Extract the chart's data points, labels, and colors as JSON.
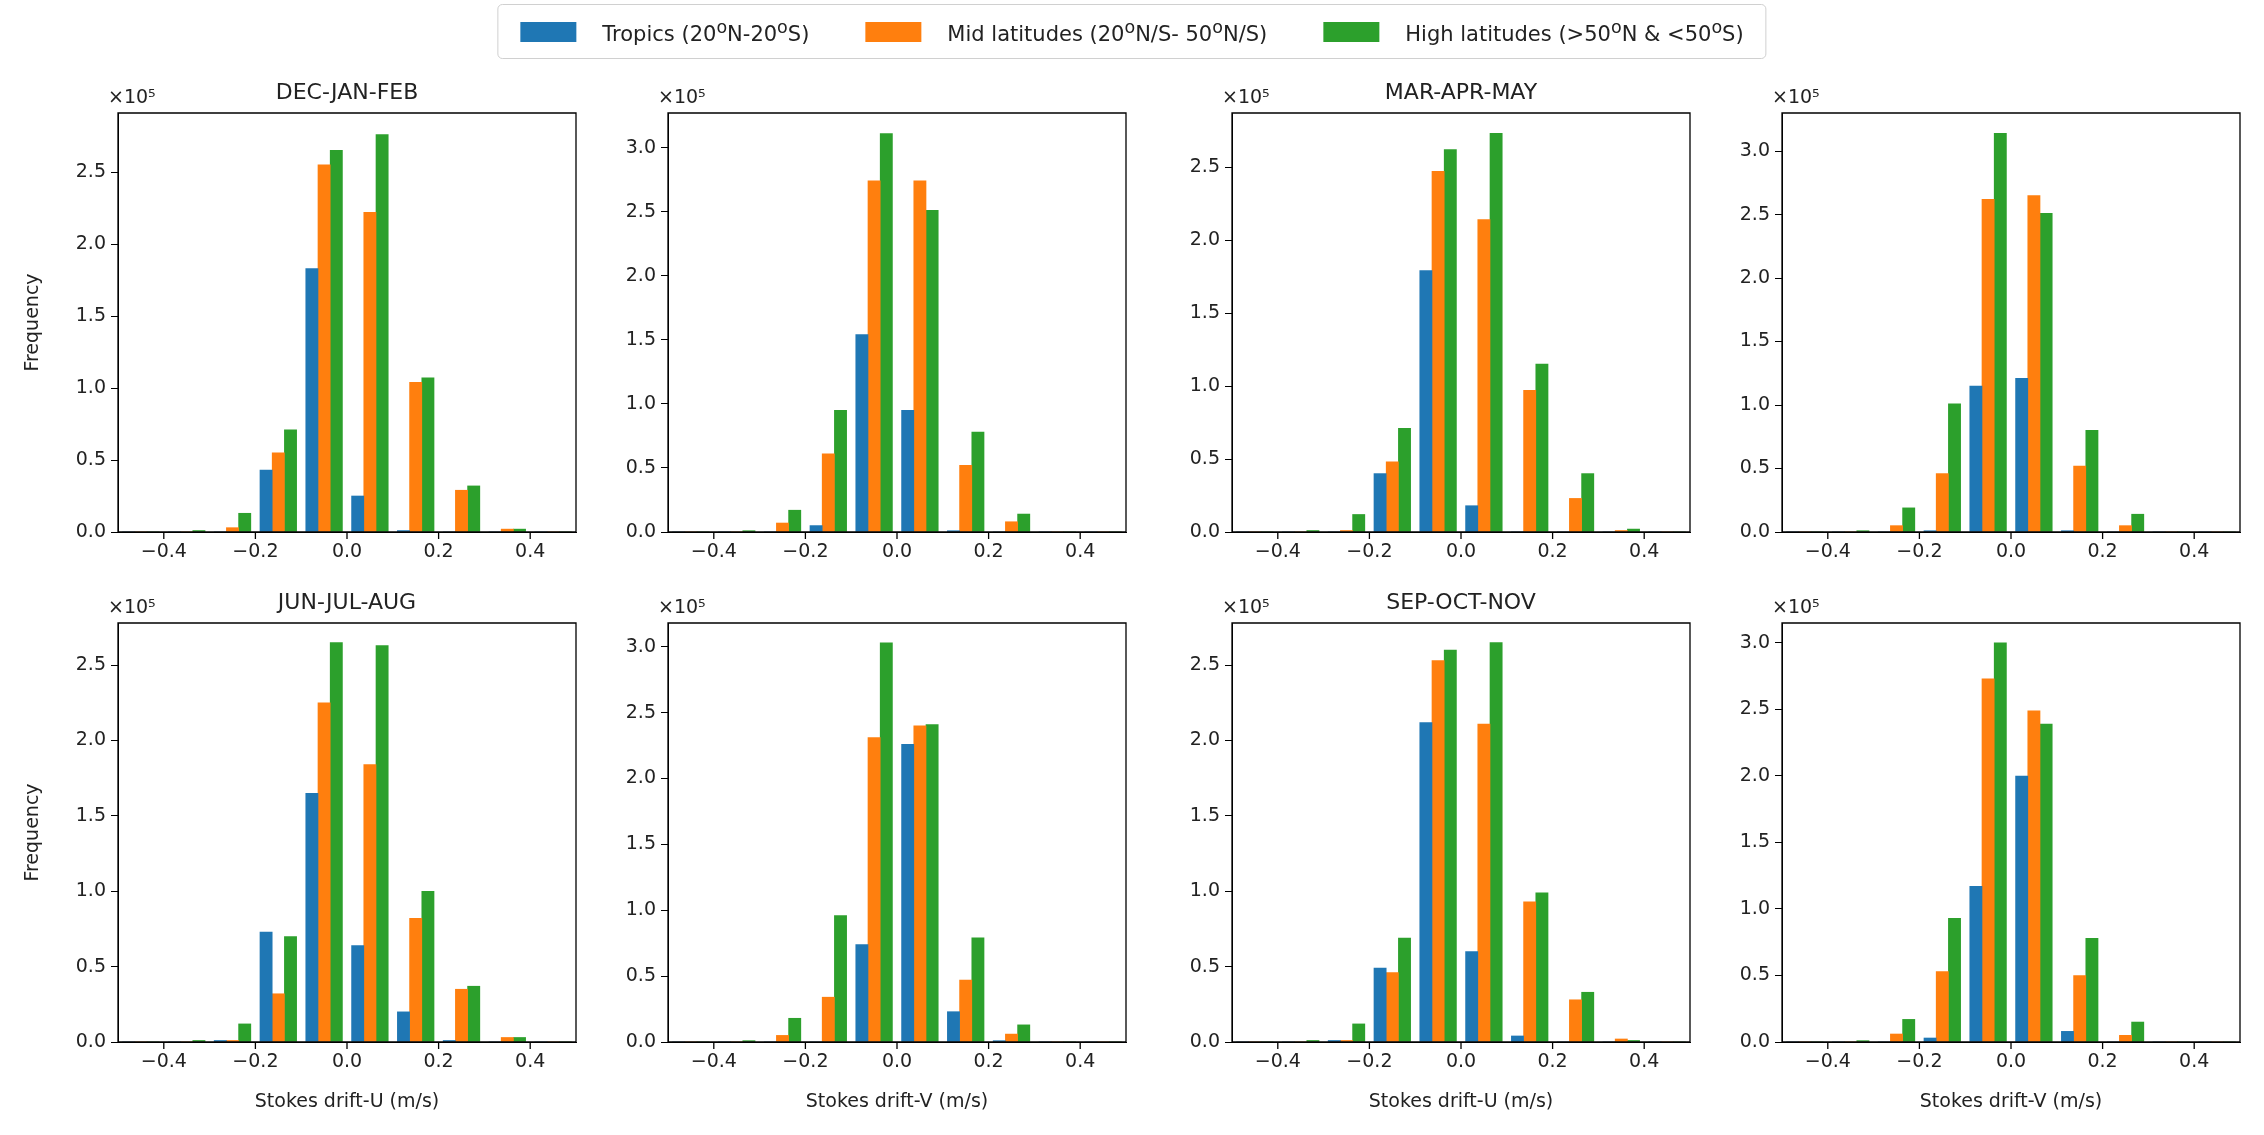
{
  "chart_data": [
    {
      "type": "histogram",
      "title": "DEC-JAN-FEB",
      "ylabel": "Frequency",
      "legend": "top",
      "annotations": [
        "×10⁵"
      ],
      "bins": [
        -0.5,
        -0.4,
        -0.3,
        -0.2,
        -0.1,
        0,
        0.1,
        0.2,
        0.3,
        0.4,
        0.5
      ],
      "series": [
        {
          "name": "Tropics (20$^{o}$N-20$^{o}$S)",
          "color": "#1f77b4",
          "values": [
            0,
            0,
            0,
            0.43,
            1.83,
            0.25,
            0.01,
            0,
            0,
            0
          ]
        },
        {
          "name": "Mid latitudes (20$^{o}$N/S- 50$^{o}$N/S)",
          "color": "#ff7f0e",
          "values": [
            0,
            0,
            0.03,
            0.55,
            2.55,
            2.22,
            1.04,
            0.29,
            0.02,
            0
          ]
        },
        {
          "name": "High latitudes (>50$^{o}$N & <50$^{o}$S)",
          "color": "#2ca02c",
          "values": [
            0,
            0.01,
            0.13,
            0.71,
            2.65,
            2.76,
            1.07,
            0.32,
            0.02,
            0
          ]
        }
      ],
      "xlim": [
        -0.5,
        0.5
      ],
      "xticks": [
        {
          "value": -0.4,
          "label": "−0.4"
        },
        {
          "value": -0.2,
          "label": "−0.2"
        },
        {
          "value": 0,
          "label": "0.0"
        },
        {
          "value": 0.2,
          "label": "0.2"
        },
        {
          "value": 0.4,
          "label": "0.4"
        }
      ],
      "ylim": [
        0,
        2.91
      ],
      "yticks": [
        {
          "value": 0,
          "label": "0.0"
        },
        0.5,
        {
          "value": 1,
          "label": "1.0"
        },
        1.5,
        {
          "value": 2,
          "label": "2.0"
        },
        2.5
      ]
    },
    {
      "type": "histogram",
      "annotations": [
        "×10⁵"
      ],
      "bins": [
        -0.5,
        -0.4,
        -0.3,
        -0.2,
        -0.1,
        0,
        0.1,
        0.2,
        0.3,
        0.4,
        0.5
      ],
      "series": [
        {
          "color": "#1f77b4",
          "values": [
            0,
            0,
            0,
            0.05,
            1.54,
            0.95,
            0.01,
            0,
            0,
            0
          ]
        },
        {
          "color": "#ff7f0e",
          "values": [
            0,
            0,
            0.07,
            0.61,
            2.74,
            2.74,
            0.52,
            0.08,
            0,
            0
          ]
        },
        {
          "color": "#2ca02c",
          "values": [
            0,
            0.01,
            0.17,
            0.95,
            3.11,
            2.51,
            0.78,
            0.14,
            0,
            0
          ]
        }
      ],
      "xlim": [
        -0.5,
        0.5
      ],
      "xticks": [
        {
          "value": -0.4,
          "label": "−0.4"
        },
        {
          "value": -0.2,
          "label": "−0.2"
        },
        {
          "value": 0,
          "label": "0.0"
        },
        {
          "value": 0.2,
          "label": "0.2"
        },
        {
          "value": 0.4,
          "label": "0.4"
        }
      ],
      "ylim": [
        0,
        3.27
      ],
      "yticks": [
        {
          "value": 0,
          "label": "0.0"
        },
        0.5,
        {
          "value": 1,
          "label": "1.0"
        },
        1.5,
        {
          "value": 2,
          "label": "2.0"
        },
        2.5,
        {
          "value": 3,
          "label": "3.0"
        }
      ]
    },
    {
      "type": "histogram",
      "title": "MAR-APR-MAY",
      "annotations": [
        "×10⁵"
      ],
      "bins": [
        -0.5,
        -0.4,
        -0.3,
        -0.2,
        -0.1,
        0,
        0.1,
        0.2,
        0.3,
        0.4,
        0.5
      ],
      "series": [
        {
          "color": "#1f77b4",
          "values": [
            0,
            0,
            0,
            0.4,
            1.79,
            0.18,
            0,
            0,
            0,
            0
          ]
        },
        {
          "color": "#ff7f0e",
          "values": [
            0,
            0,
            0.01,
            0.48,
            2.47,
            2.14,
            0.97,
            0.23,
            0.01,
            0
          ]
        },
        {
          "color": "#2ca02c",
          "values": [
            0,
            0.01,
            0.12,
            0.71,
            2.62,
            2.73,
            1.15,
            0.4,
            0.02,
            0
          ]
        }
      ],
      "xlim": [
        -0.5,
        0.5
      ],
      "xticks": [
        {
          "value": -0.4,
          "label": "−0.4"
        },
        {
          "value": -0.2,
          "label": "−0.2"
        },
        {
          "value": 0,
          "label": "0.0"
        },
        {
          "value": 0.2,
          "label": "0.2"
        },
        {
          "value": 0.4,
          "label": "0.4"
        }
      ],
      "ylim": [
        0,
        2.87
      ],
      "yticks": [
        {
          "value": 0,
          "label": "0.0"
        },
        0.5,
        {
          "value": 1,
          "label": "1.0"
        },
        1.5,
        {
          "value": 2,
          "label": "2.0"
        },
        2.5
      ]
    },
    {
      "type": "histogram",
      "annotations": [
        "×10⁵"
      ],
      "bins": [
        -0.5,
        -0.4,
        -0.3,
        -0.2,
        -0.1,
        0,
        0.1,
        0.2,
        0.3,
        0.4,
        0.5
      ],
      "series": [
        {
          "color": "#1f77b4",
          "values": [
            0,
            0,
            0,
            0.01,
            1.15,
            1.21,
            0.01,
            0,
            0,
            0
          ]
        },
        {
          "color": "#ff7f0e",
          "values": [
            0,
            0,
            0.05,
            0.46,
            2.62,
            2.65,
            0.52,
            0.05,
            0,
            0
          ]
        },
        {
          "color": "#2ca02c",
          "values": [
            0,
            0.01,
            0.19,
            1.01,
            3.14,
            2.51,
            0.8,
            0.14,
            0,
            0
          ]
        }
      ],
      "xlim": [
        -0.5,
        0.5
      ],
      "xticks": [
        {
          "value": -0.4,
          "label": "−0.4"
        },
        {
          "value": -0.2,
          "label": "−0.2"
        },
        {
          "value": 0,
          "label": "0.0"
        },
        {
          "value": 0.2,
          "label": "0.2"
        },
        {
          "value": 0.4,
          "label": "0.4"
        }
      ],
      "ylim": [
        0,
        3.3
      ],
      "yticks": [
        {
          "value": 0,
          "label": "0.0"
        },
        0.5,
        {
          "value": 1,
          "label": "1.0"
        },
        1.5,
        {
          "value": 2,
          "label": "2.0"
        },
        2.5,
        {
          "value": 3,
          "label": "3.0"
        }
      ]
    },
    {
      "type": "histogram",
      "title": "JUN-JUL-AUG",
      "xlabel": "Stokes drift-U (m/s)",
      "ylabel": "Frequency",
      "annotations": [
        "×10⁵"
      ],
      "bins": [
        -0.5,
        -0.4,
        -0.3,
        -0.2,
        -0.1,
        0,
        0.1,
        0.2,
        0.3,
        0.4,
        0.5
      ],
      "series": [
        {
          "color": "#1f77b4",
          "values": [
            0,
            0,
            0.01,
            0.73,
            1.65,
            0.64,
            0.2,
            0.01,
            0,
            0
          ]
        },
        {
          "color": "#ff7f0e",
          "values": [
            0,
            0,
            0.01,
            0.32,
            2.25,
            1.84,
            0.82,
            0.35,
            0.03,
            0
          ]
        },
        {
          "color": "#2ca02c",
          "values": [
            0,
            0.01,
            0.12,
            0.7,
            2.65,
            2.63,
            1.0,
            0.37,
            0.03,
            0
          ]
        }
      ],
      "xlim": [
        -0.5,
        0.5
      ],
      "xticks": [
        {
          "value": -0.4,
          "label": "−0.4"
        },
        {
          "value": -0.2,
          "label": "−0.2"
        },
        {
          "value": 0,
          "label": "0.0"
        },
        {
          "value": 0.2,
          "label": "0.2"
        },
        {
          "value": 0.4,
          "label": "0.4"
        }
      ],
      "ylim": [
        0,
        2.78
      ],
      "yticks": [
        {
          "value": 0,
          "label": "0.0"
        },
        0.5,
        {
          "value": 1,
          "label": "1.0"
        },
        1.5,
        {
          "value": 2,
          "label": "2.0"
        },
        2.5
      ]
    },
    {
      "type": "histogram",
      "xlabel": "Stokes drift-V (m/s)",
      "annotations": [
        "×10⁵"
      ],
      "bins": [
        -0.5,
        -0.4,
        -0.3,
        -0.2,
        -0.1,
        0,
        0.1,
        0.2,
        0.3,
        0.4,
        0.5
      ],
      "series": [
        {
          "color": "#1f77b4",
          "values": [
            0,
            0,
            0,
            0,
            0.74,
            2.26,
            0.23,
            0.01,
            0,
            0
          ]
        },
        {
          "color": "#ff7f0e",
          "values": [
            0,
            0,
            0.05,
            0.34,
            2.31,
            2.4,
            0.47,
            0.06,
            0,
            0
          ]
        },
        {
          "color": "#2ca02c",
          "values": [
            0,
            0.01,
            0.18,
            0.96,
            3.03,
            2.41,
            0.79,
            0.13,
            0,
            0
          ]
        }
      ],
      "xlim": [
        -0.5,
        0.5
      ],
      "xticks": [
        {
          "value": -0.4,
          "label": "−0.4"
        },
        {
          "value": -0.2,
          "label": "−0.2"
        },
        {
          "value": 0,
          "label": "0.0"
        },
        {
          "value": 0.2,
          "label": "0.2"
        },
        {
          "value": 0.4,
          "label": "0.4"
        }
      ],
      "ylim": [
        0,
        3.18
      ],
      "yticks": [
        {
          "value": 0,
          "label": "0.0"
        },
        0.5,
        {
          "value": 1,
          "label": "1.0"
        },
        1.5,
        {
          "value": 2,
          "label": "2.0"
        },
        2.5,
        {
          "value": 3,
          "label": "3.0"
        }
      ]
    },
    {
      "type": "histogram",
      "title": "SEP-OCT-NOV",
      "xlabel": "Stokes drift-U (m/s)",
      "annotations": [
        "×10⁵"
      ],
      "bins": [
        -0.5,
        -0.4,
        -0.3,
        -0.2,
        -0.1,
        0,
        0.1,
        0.2,
        0.3,
        0.4,
        0.5
      ],
      "series": [
        {
          "color": "#1f77b4",
          "values": [
            0,
            0,
            0.01,
            0.49,
            2.12,
            0.6,
            0.04,
            0,
            0,
            0
          ]
        },
        {
          "color": "#ff7f0e",
          "values": [
            0,
            0,
            0.01,
            0.46,
            2.53,
            2.11,
            0.93,
            0.28,
            0.02,
            0
          ]
        },
        {
          "color": "#2ca02c",
          "values": [
            0,
            0.01,
            0.12,
            0.69,
            2.6,
            2.65,
            0.99,
            0.33,
            0.01,
            0
          ]
        }
      ],
      "xlim": [
        -0.5,
        0.5
      ],
      "xticks": [
        {
          "value": -0.4,
          "label": "−0.4"
        },
        {
          "value": -0.2,
          "label": "−0.2"
        },
        {
          "value": 0,
          "label": "0.0"
        },
        {
          "value": 0.2,
          "label": "0.2"
        },
        {
          "value": 0.4,
          "label": "0.4"
        }
      ],
      "ylim": [
        0,
        2.78
      ],
      "yticks": [
        {
          "value": 0,
          "label": "0.0"
        },
        0.5,
        {
          "value": 1,
          "label": "1.0"
        },
        1.5,
        {
          "value": 2,
          "label": "2.0"
        },
        2.5
      ]
    },
    {
      "type": "histogram",
      "xlabel": "Stokes drift-V (m/s)",
      "annotations": [
        "×10⁵"
      ],
      "bins": [
        -0.5,
        -0.4,
        -0.3,
        -0.2,
        -0.1,
        0,
        0.1,
        0.2,
        0.3,
        0.4,
        0.5
      ],
      "series": [
        {
          "color": "#1f77b4",
          "values": [
            0,
            0,
            0,
            0.03,
            1.17,
            2.0,
            0.08,
            0,
            0,
            0
          ]
        },
        {
          "color": "#ff7f0e",
          "values": [
            0,
            0,
            0.06,
            0.53,
            2.73,
            2.49,
            0.5,
            0.05,
            0,
            0
          ]
        },
        {
          "color": "#2ca02c",
          "values": [
            0,
            0.01,
            0.17,
            0.93,
            3.0,
            2.39,
            0.78,
            0.15,
            0,
            0
          ]
        }
      ],
      "xlim": [
        -0.5,
        0.5
      ],
      "xticks": [
        {
          "value": -0.4,
          "label": "−0.4"
        },
        {
          "value": -0.2,
          "label": "−0.2"
        },
        {
          "value": 0,
          "label": "0.0"
        },
        {
          "value": 0.2,
          "label": "0.2"
        },
        {
          "value": 0.4,
          "label": "0.4"
        }
      ],
      "ylim": [
        0,
        3.15
      ],
      "yticks": [
        {
          "value": 0,
          "label": "0.0"
        },
        0.5,
        {
          "value": 1,
          "label": "1.0"
        },
        1.5,
        {
          "value": 2,
          "label": "2.0"
        },
        2.5,
        {
          "value": 3,
          "label": "3.0"
        }
      ]
    }
  ]
}
